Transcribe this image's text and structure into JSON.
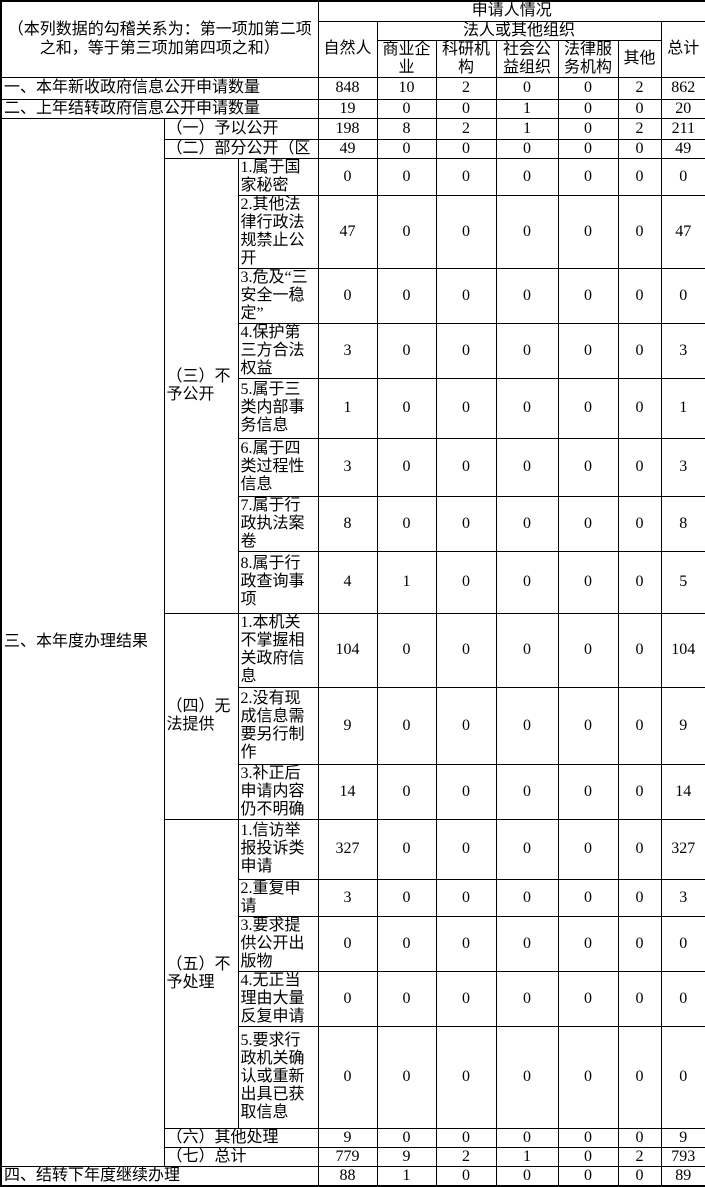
{
  "header": {
    "stub_note": "（本列数据的勾稽关系为：第一项加第二项之和，等于第三项加第四项之和）",
    "applicant_title": "申请人情况",
    "natural_person": "自然人",
    "legal_group": "法人或其他组织",
    "legal_cols": [
      "商业企业",
      "科研机构",
      "社会公益组织",
      "法律服务机构",
      "其他"
    ],
    "total": "总计"
  },
  "colors": {
    "border": "#000000",
    "text": "#000000",
    "background": "#ffffff"
  },
  "table": {
    "rows": [
      {
        "span": 3,
        "label": "一、本年新收政府信息公开申请数量",
        "values": [
          848,
          10,
          2,
          0,
          0,
          2,
          862
        ]
      },
      {
        "span": 3,
        "label": "二、上年结转政府信息公开申请数量",
        "values": [
          19,
          0,
          0,
          1,
          0,
          0,
          20
        ]
      },
      {
        "span": 2,
        "groupA": {
          "label": "三、本年度办理结果",
          "rowspan": 20
        },
        "label": "（一）予以公开",
        "values": [
          198,
          8,
          2,
          1,
          0,
          2,
          211
        ]
      },
      {
        "span": 2,
        "label": "（二）部分公开（区",
        "values": [
          49,
          0,
          0,
          0,
          0,
          0,
          49
        ]
      },
      {
        "span": 1,
        "groupB": {
          "label": "（三）不予公开",
          "rowspan": 8
        },
        "label": "1.属于国家秘密",
        "values": [
          0,
          0,
          0,
          0,
          0,
          0,
          0
        ]
      },
      {
        "span": 1,
        "label": "2.其他法律行政法规禁止公开",
        "values": [
          47,
          0,
          0,
          0,
          0,
          0,
          47
        ]
      },
      {
        "span": 1,
        "label": "3.危及“三安全一稳定”",
        "values": [
          0,
          0,
          0,
          0,
          0,
          0,
          0
        ]
      },
      {
        "span": 1,
        "label": "4.保护第三方合法权益",
        "values": [
          3,
          0,
          0,
          0,
          0,
          0,
          3
        ]
      },
      {
        "span": 1,
        "label": "5.属于三类内部事务信息",
        "values": [
          1,
          0,
          0,
          0,
          0,
          0,
          1
        ]
      },
      {
        "span": 1,
        "label": "6.属于四类过程性信息",
        "values": [
          3,
          0,
          0,
          0,
          0,
          0,
          3
        ]
      },
      {
        "span": 1,
        "label": "7.属于行政执法案卷",
        "values": [
          8,
          0,
          0,
          0,
          0,
          0,
          8
        ]
      },
      {
        "span": 1,
        "label": "8.属于行政查询事项",
        "values": [
          4,
          1,
          0,
          0,
          0,
          0,
          5
        ],
        "thickTop": true
      },
      {
        "span": 1,
        "groupB": {
          "label": "（四）无法提供",
          "rowspan": 3
        },
        "label": "1.本机关不掌握相关政府信息",
        "values": [
          104,
          0,
          0,
          0,
          0,
          0,
          104
        ]
      },
      {
        "span": 1,
        "label": "2.没有现成信息需要另行制作",
        "values": [
          9,
          0,
          0,
          0,
          0,
          0,
          9
        ]
      },
      {
        "span": 1,
        "label": "3.补正后申请内容仍不明确",
        "values": [
          14,
          0,
          0,
          0,
          0,
          0,
          14
        ]
      },
      {
        "span": 1,
        "groupB": {
          "label": "（五）不予处理",
          "rowspan": 5
        },
        "label": "1.信访举报投诉类申请",
        "values": [
          327,
          0,
          0,
          0,
          0,
          0,
          327
        ]
      },
      {
        "span": 1,
        "label": "2.重复申请",
        "values": [
          3,
          0,
          0,
          0,
          0,
          0,
          3
        ]
      },
      {
        "span": 1,
        "label": "3.要求提供公开出版物",
        "values": [
          0,
          0,
          0,
          0,
          0,
          0,
          0
        ]
      },
      {
        "span": 1,
        "label": "4.无正当理由大量反复申请",
        "values": [
          0,
          0,
          0,
          0,
          0,
          0,
          0
        ]
      },
      {
        "span": 1,
        "label": "5.要求行政机关确认或重新出具已获取信息",
        "values": [
          0,
          0,
          0,
          0,
          0,
          0,
          0
        ]
      },
      {
        "span": 2,
        "label": "（六）其他处理",
        "values": [
          9,
          0,
          0,
          0,
          0,
          0,
          9
        ]
      },
      {
        "span": 2,
        "label": "（七）总计",
        "values": [
          779,
          9,
          2,
          1,
          0,
          2,
          793
        ]
      },
      {
        "span": 3,
        "label": "四、结转下年度继续办理",
        "values": [
          88,
          1,
          0,
          0,
          0,
          0,
          89
        ]
      }
    ]
  }
}
